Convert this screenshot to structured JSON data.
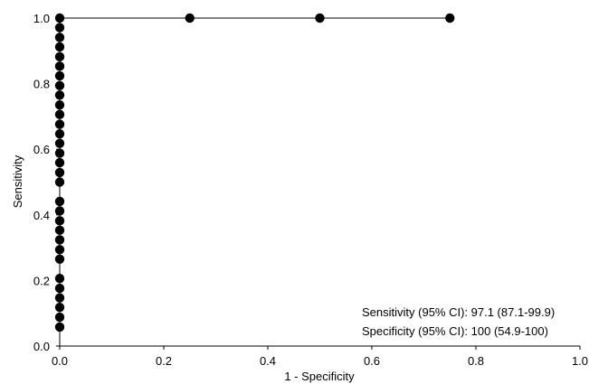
{
  "chart_data": {
    "type": "scatter",
    "title": "",
    "xlabel": "1 - Specificity",
    "ylabel": "Sensitivity",
    "xlim": [
      0,
      1
    ],
    "ylim": [
      0,
      1
    ],
    "x_ticks": [
      "0.0",
      "0.2",
      "0.4",
      "0.6",
      "0.8",
      "1.0"
    ],
    "y_ticks": [
      "0.0",
      "0.2",
      "0.4",
      "0.6",
      "0.8",
      "1.0"
    ],
    "grid": false,
    "legend": "none",
    "connected_line": true,
    "points": [
      {
        "x": 0,
        "y": 0.058
      },
      {
        "x": 0,
        "y": 0.088
      },
      {
        "x": 0,
        "y": 0.118
      },
      {
        "x": 0,
        "y": 0.147
      },
      {
        "x": 0,
        "y": 0.176
      },
      {
        "x": 0,
        "y": 0.206
      },
      {
        "x": 0,
        "y": 0.265
      },
      {
        "x": 0,
        "y": 0.294
      },
      {
        "x": 0,
        "y": 0.324
      },
      {
        "x": 0,
        "y": 0.353
      },
      {
        "x": 0,
        "y": 0.382
      },
      {
        "x": 0,
        "y": 0.412
      },
      {
        "x": 0,
        "y": 0.441
      },
      {
        "x": 0,
        "y": 0.5
      },
      {
        "x": 0,
        "y": 0.529
      },
      {
        "x": 0,
        "y": 0.559
      },
      {
        "x": 0,
        "y": 0.588
      },
      {
        "x": 0,
        "y": 0.618
      },
      {
        "x": 0,
        "y": 0.647
      },
      {
        "x": 0,
        "y": 0.676
      },
      {
        "x": 0,
        "y": 0.706
      },
      {
        "x": 0,
        "y": 0.735
      },
      {
        "x": 0,
        "y": 0.765
      },
      {
        "x": 0,
        "y": 0.794
      },
      {
        "x": 0,
        "y": 0.824
      },
      {
        "x": 0,
        "y": 0.853
      },
      {
        "x": 0,
        "y": 0.882
      },
      {
        "x": 0,
        "y": 0.912
      },
      {
        "x": 0,
        "y": 0.941
      },
      {
        "x": 0,
        "y": 0.971
      },
      {
        "x": 0,
        "y": 1.0
      },
      {
        "x": 0.25,
        "y": 1.0
      },
      {
        "x": 0.5,
        "y": 1.0
      },
      {
        "x": 0.75,
        "y": 1.0
      }
    ],
    "annotations": [
      "Sensitivity (95% CI): 97.1 (87.1-99.9)",
      "Specificity (95% CI): 100 (54.9-100)"
    ],
    "colors": {
      "marker": "#000000",
      "line": "#000000"
    }
  }
}
